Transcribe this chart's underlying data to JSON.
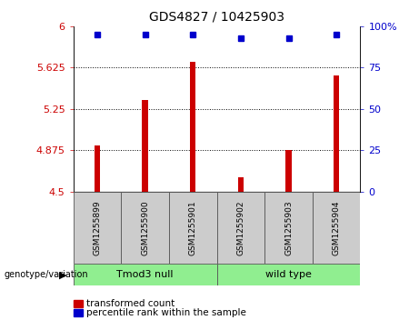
{
  "title": "GDS4827 / 10425903",
  "samples": [
    "GSM1255899",
    "GSM1255900",
    "GSM1255901",
    "GSM1255902",
    "GSM1255903",
    "GSM1255904"
  ],
  "bar_values": [
    4.92,
    5.33,
    5.68,
    4.63,
    4.88,
    5.55
  ],
  "percentile_values": [
    95,
    95,
    95,
    93,
    93,
    95
  ],
  "bar_color": "#cc0000",
  "dot_color": "#0000cc",
  "ylim_left": [
    4.5,
    6.0
  ],
  "ylim_right": [
    0,
    100
  ],
  "yticks_left": [
    4.5,
    4.875,
    5.25,
    5.625,
    6.0
  ],
  "ytick_labels_left": [
    "4.5",
    "4.875",
    "5.25",
    "5.625",
    "6"
  ],
  "yticks_right": [
    0,
    25,
    50,
    75,
    100
  ],
  "ytick_labels_right": [
    "0",
    "25",
    "50",
    "75",
    "100%"
  ],
  "groups": [
    {
      "label": "Tmod3 null",
      "indices": [
        0,
        1,
        2
      ],
      "color": "#90ee90"
    },
    {
      "label": "wild type",
      "indices": [
        3,
        4,
        5
      ],
      "color": "#90ee90"
    }
  ],
  "group_label": "genotype/variation",
  "legend_bar_label": "transformed count",
  "legend_dot_label": "percentile rank within the sample",
  "background_color": "#ffffff",
  "plot_bg_color": "#ffffff",
  "label_color_left": "#cc0000",
  "label_color_right": "#0000cc",
  "bar_width": 0.12,
  "gridlines": [
    4.875,
    5.25,
    5.625
  ]
}
